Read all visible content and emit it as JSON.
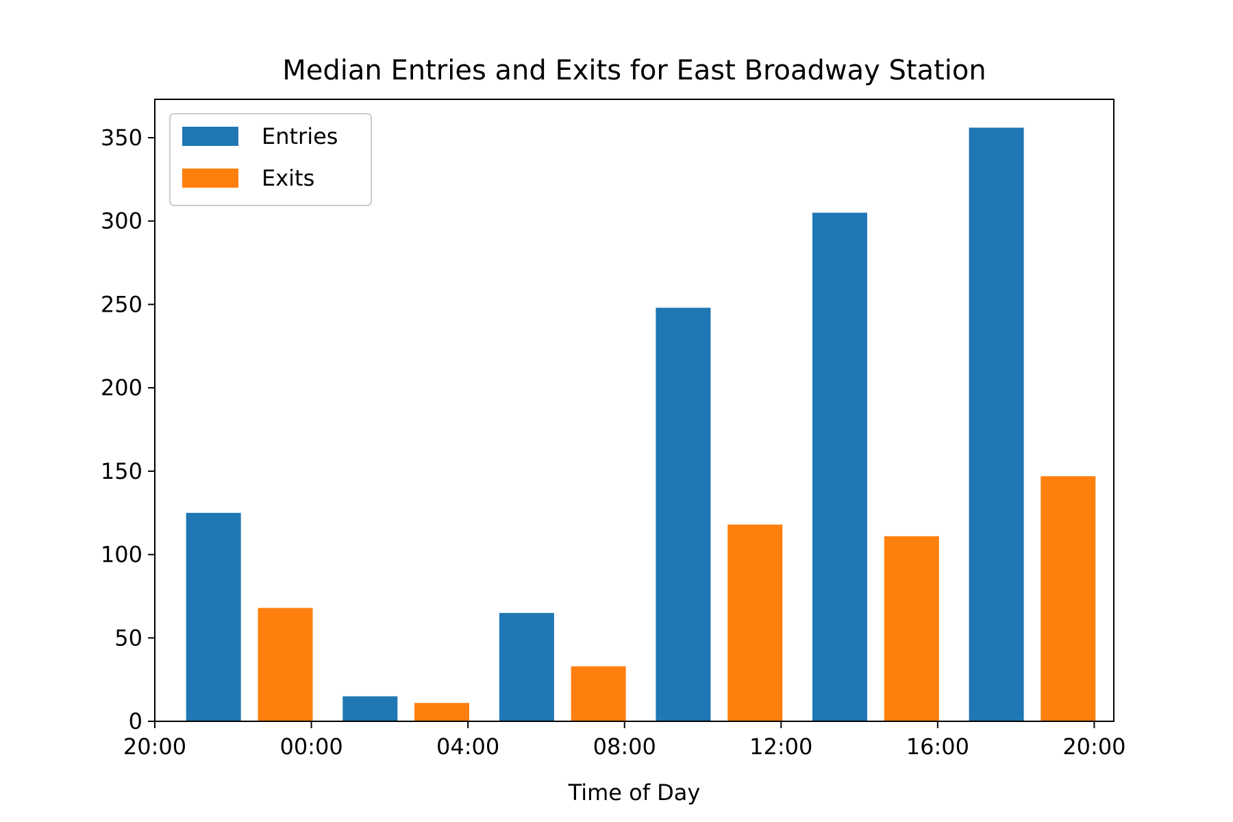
{
  "chart_data": {
    "type": "bar",
    "title": "Median Entries and Exits for East Broadway Station",
    "xlabel": "Time of Day",
    "ylabel": "",
    "x_tick_labels": [
      "20:00",
      "00:00",
      "04:00",
      "08:00",
      "12:00",
      "16:00",
      "20:00"
    ],
    "y_ticks": [
      0,
      50,
      100,
      150,
      200,
      250,
      300,
      350
    ],
    "ylim": [
      0,
      373
    ],
    "legend_position": "upper-left",
    "grid": false,
    "series": [
      {
        "name": "Entries",
        "color": "#1f77b4",
        "values": [
          {
            "x": "21:30",
            "y": 125
          },
          {
            "x": "01:30",
            "y": 15
          },
          {
            "x": "05:30",
            "y": 65
          },
          {
            "x": "09:30",
            "y": 248
          },
          {
            "x": "13:30",
            "y": 305
          },
          {
            "x": "17:30",
            "y": 356
          }
        ]
      },
      {
        "name": "Exits",
        "color": "#ff7f0e",
        "values": [
          {
            "x": "23:20",
            "y": 68
          },
          {
            "x": "03:20",
            "y": 11
          },
          {
            "x": "07:20",
            "y": 33
          },
          {
            "x": "11:20",
            "y": 118
          },
          {
            "x": "15:20",
            "y": 111
          },
          {
            "x": "19:20",
            "y": 147
          }
        ]
      }
    ]
  }
}
